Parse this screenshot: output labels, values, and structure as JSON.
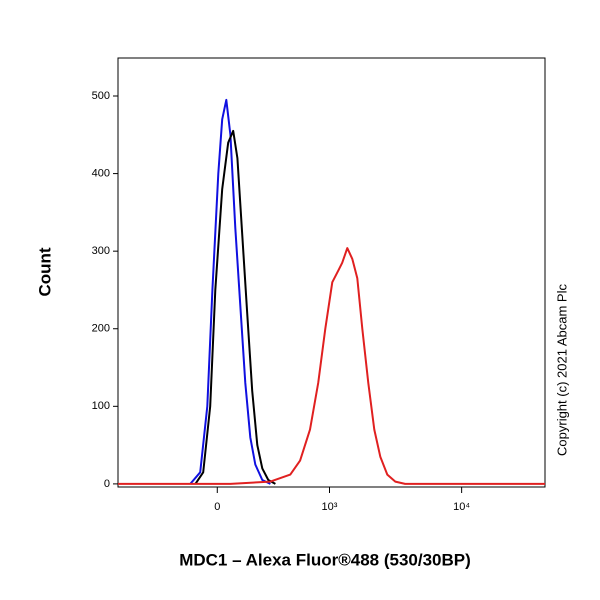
{
  "chart_data": {
    "type": "line",
    "x_label": "MDC1 – Alexa Fluor®488 (530/30BP)",
    "y_label": "Count",
    "annotation": "Copyright (c) 2021 Abcam Plc",
    "xscale": "biexponential",
    "xlim": [
      -790,
      42200
    ],
    "xticks": [
      0,
      {
        "value": 1000,
        "label": "10³"
      },
      {
        "value": 10000,
        "label": "10⁴"
      }
    ],
    "ylim": [
      -4,
      549
    ],
    "yticks": [
      0,
      100,
      200,
      300,
      400,
      500
    ],
    "grid": false,
    "series": [
      {
        "color": "#1010e0",
        "x": [
          -142,
          -88,
          -51,
          -25,
          5,
          25,
          46,
          67,
          93,
          120,
          148,
          177,
          207,
          252,
          309
        ],
        "values": [
          0,
          15,
          100,
          250,
          400,
          470,
          495,
          450,
          330,
          230,
          130,
          60,
          25,
          5,
          0
        ]
      },
      {
        "color": "#000000",
        "x": [
          -114,
          -72,
          -36,
          -10,
          25,
          56,
          82,
          104,
          131,
          159,
          188,
          220,
          252,
          294,
          347
        ],
        "values": [
          0,
          15,
          100,
          250,
          380,
          440,
          455,
          420,
          320,
          220,
          120,
          50,
          20,
          5,
          0
        ]
      },
      {
        "color": "#e02020",
        "x": [
          -790,
          67,
          309,
          477,
          579,
          700,
          814,
          926,
          1052,
          1170,
          1255,
          1373,
          1499,
          1638,
          1788,
          1985,
          2205,
          2446,
          2761,
          3175,
          3763,
          42200
        ],
        "values": [
          0,
          0,
          3,
          12,
          30,
          70,
          130,
          200,
          260,
          275,
          285,
          304,
          290,
          265,
          200,
          130,
          70,
          35,
          12,
          3,
          0,
          0
        ]
      }
    ]
  }
}
